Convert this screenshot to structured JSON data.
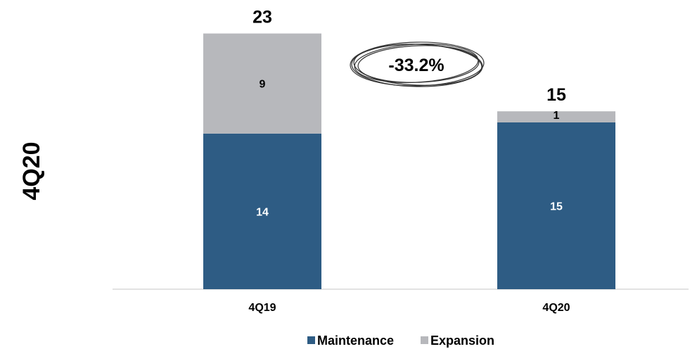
{
  "chart_data": {
    "type": "bar",
    "stacked": true,
    "side_title": "4Q20",
    "categories": [
      "4Q19",
      "4Q20"
    ],
    "series": [
      {
        "name": "Maintenance",
        "values": [
          14,
          15
        ],
        "color": "#2e5c84",
        "label_color": "#ffffff"
      },
      {
        "name": "Expansion",
        "values": [
          9,
          1
        ],
        "color": "#b7b8bc",
        "label_color": "#000000"
      }
    ],
    "totals": [
      "23",
      "15"
    ],
    "segment_labels": [
      [
        "14",
        "9"
      ],
      [
        "15",
        "1"
      ]
    ],
    "change_annotation": "-33.2%",
    "legend_position": "bottom-center",
    "grid": false,
    "ylim": [
      0,
      23
    ]
  }
}
